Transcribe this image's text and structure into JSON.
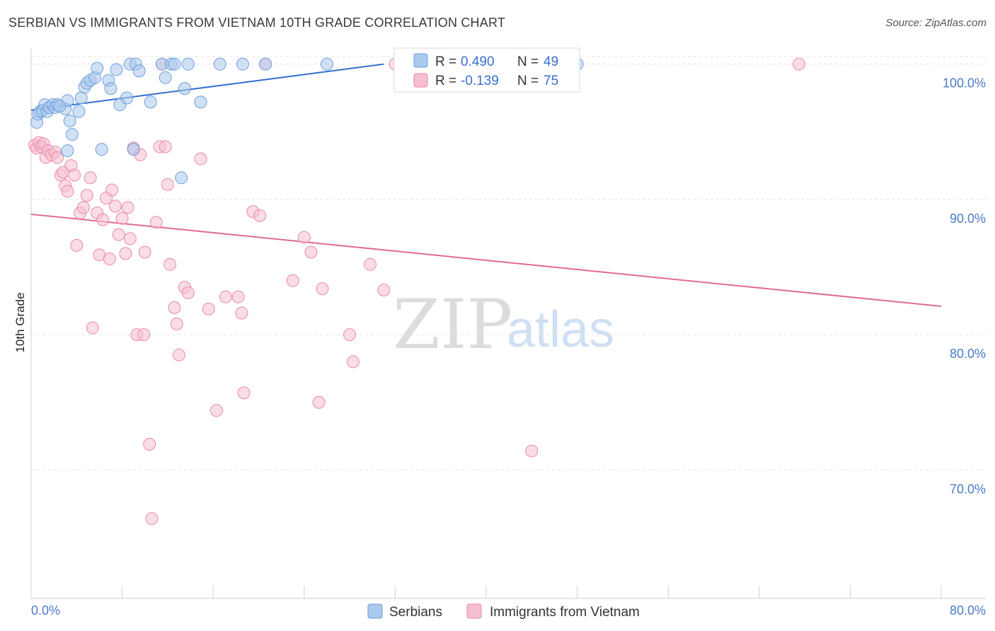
{
  "title": "SERBIAN VS IMMIGRANTS FROM VIETNAM 10TH GRADE CORRELATION CHART",
  "source": "Source: ZipAtlas.com",
  "watermark": {
    "zip": "ZIP",
    "atlas": "atlas"
  },
  "colors": {
    "serbians_fill": "#aac9ef",
    "serbians_stroke": "#6f9fd8",
    "serbians_line": "#2f6fce",
    "vietnam_fill": "#f6bfd0",
    "vietnam_stroke": "#e98aa9",
    "vietnam_line": "#e06a95",
    "axis_label": "#4a7bc8",
    "grid": "#e3e3e3"
  },
  "legend": {
    "r_label": "R =",
    "n_label": "N =",
    "rows": [
      {
        "r": "0.490",
        "n": "49"
      },
      {
        "r": "-0.139",
        "n": "75"
      }
    ]
  },
  "chart_data": {
    "type": "scatter",
    "title": "SERBIAN VS IMMIGRANTS FROM VIETNAM 10TH GRADE CORRELATION CHART",
    "xlabel": "",
    "ylabel": "10th Grade",
    "xlim": [
      0,
      80
    ],
    "ylim": [
      60.5,
      101.5
    ],
    "x_tick_labels": [
      "0.0%",
      "80.0%"
    ],
    "y_ticks": [
      70,
      80,
      90,
      100
    ],
    "y_tick_labels": [
      "70.0%",
      "80.0%",
      "90.0%",
      "100.0%"
    ],
    "grid": true,
    "legend_position": "bottom",
    "series": [
      {
        "name": "Serbians",
        "r": 0.49,
        "n": 49,
        "trend": {
          "x": [
            0,
            31
          ],
          "y": [
            96.6,
            100.0
          ]
        },
        "points": [
          [
            0.5,
            95.7
          ],
          [
            0.6,
            96.3
          ],
          [
            0.8,
            96.5
          ],
          [
            1.0,
            96.6
          ],
          [
            1.2,
            97.0
          ],
          [
            1.4,
            96.5
          ],
          [
            1.6,
            96.8
          ],
          [
            1.9,
            97.0
          ],
          [
            2.1,
            96.8
          ],
          [
            2.3,
            97.0
          ],
          [
            3.0,
            96.7
          ],
          [
            3.2,
            97.3
          ],
          [
            3.4,
            95.8
          ],
          [
            3.6,
            94.8
          ],
          [
            4.2,
            96.5
          ],
          [
            4.4,
            97.5
          ],
          [
            4.7,
            98.3
          ],
          [
            4.9,
            98.6
          ],
          [
            5.2,
            98.8
          ],
          [
            5.6,
            99.0
          ],
          [
            5.8,
            99.7
          ],
          [
            6.2,
            93.7
          ],
          [
            6.8,
            98.8
          ],
          [
            7.0,
            98.2
          ],
          [
            7.5,
            99.6
          ],
          [
            7.8,
            97.0
          ],
          [
            8.4,
            97.5
          ],
          [
            8.7,
            100.0
          ],
          [
            9.0,
            93.7
          ],
          [
            9.2,
            100.0
          ],
          [
            9.5,
            99.5
          ],
          [
            10.5,
            97.2
          ],
          [
            11.5,
            100.0
          ],
          [
            11.8,
            99.0
          ],
          [
            12.3,
            100.0
          ],
          [
            12.6,
            100.0
          ],
          [
            13.2,
            91.6
          ],
          [
            13.5,
            98.2
          ],
          [
            13.8,
            100.0
          ],
          [
            14.9,
            97.2
          ],
          [
            16.6,
            100.0
          ],
          [
            18.6,
            100.0
          ],
          [
            20.6,
            100.0
          ],
          [
            26.0,
            100.0
          ],
          [
            37.0,
            100.0
          ],
          [
            38.0,
            100.0
          ],
          [
            48.0,
            100.0
          ],
          [
            3.2,
            93.6
          ],
          [
            2.5,
            96.9
          ]
        ]
      },
      {
        "name": "Immigrants from Vietnam",
        "r": -0.139,
        "n": 75,
        "trend": {
          "x": [
            0,
            80
          ],
          "y": [
            88.9,
            82.1
          ]
        },
        "points": [
          [
            0.3,
            94.0
          ],
          [
            0.5,
            93.8
          ],
          [
            0.7,
            94.2
          ],
          [
            0.9,
            93.9
          ],
          [
            1.1,
            94.1
          ],
          [
            1.3,
            93.1
          ],
          [
            1.5,
            93.6
          ],
          [
            1.8,
            93.3
          ],
          [
            2.1,
            93.5
          ],
          [
            2.3,
            93.1
          ],
          [
            2.6,
            91.8
          ],
          [
            2.8,
            92.0
          ],
          [
            3.0,
            91.0
          ],
          [
            3.2,
            90.6
          ],
          [
            3.5,
            92.5
          ],
          [
            3.8,
            91.8
          ],
          [
            4.0,
            86.6
          ],
          [
            4.3,
            89.0
          ],
          [
            4.6,
            89.4
          ],
          [
            4.9,
            90.3
          ],
          [
            5.2,
            91.6
          ],
          [
            5.4,
            80.5
          ],
          [
            5.8,
            89.0
          ],
          [
            6.0,
            85.9
          ],
          [
            6.3,
            88.5
          ],
          [
            6.6,
            90.1
          ],
          [
            6.9,
            85.6
          ],
          [
            7.1,
            90.7
          ],
          [
            7.4,
            89.5
          ],
          [
            7.7,
            87.4
          ],
          [
            8.0,
            88.6
          ],
          [
            8.3,
            86.0
          ],
          [
            8.5,
            89.4
          ],
          [
            8.7,
            87.1
          ],
          [
            9.0,
            93.8
          ],
          [
            9.3,
            80.0
          ],
          [
            9.6,
            93.3
          ],
          [
            9.9,
            80.0
          ],
          [
            10.0,
            86.1
          ],
          [
            10.4,
            71.9
          ],
          [
            10.6,
            66.4
          ],
          [
            11.0,
            88.3
          ],
          [
            11.3,
            93.9
          ],
          [
            11.5,
            100.0
          ],
          [
            11.8,
            93.9
          ],
          [
            12.0,
            91.1
          ],
          [
            12.2,
            85.2
          ],
          [
            12.6,
            82.0
          ],
          [
            12.8,
            80.8
          ],
          [
            13.0,
            78.5
          ],
          [
            13.5,
            83.5
          ],
          [
            13.8,
            83.1
          ],
          [
            14.9,
            93.0
          ],
          [
            15.6,
            81.9
          ],
          [
            16.3,
            74.4
          ],
          [
            17.1,
            82.8
          ],
          [
            18.2,
            82.8
          ],
          [
            18.5,
            81.6
          ],
          [
            18.7,
            75.7
          ],
          [
            19.5,
            89.1
          ],
          [
            20.1,
            88.8
          ],
          [
            20.6,
            100.0
          ],
          [
            23.0,
            84.0
          ],
          [
            24.0,
            87.2
          ],
          [
            24.6,
            86.1
          ],
          [
            25.3,
            75.0
          ],
          [
            25.6,
            83.4
          ],
          [
            28.0,
            80.0
          ],
          [
            28.3,
            78.0
          ],
          [
            29.8,
            85.2
          ],
          [
            31.0,
            83.3
          ],
          [
            44.0,
            71.4
          ],
          [
            67.5,
            100.0
          ],
          [
            40.0,
            100.0
          ],
          [
            32.0,
            100.0
          ]
        ]
      }
    ]
  }
}
